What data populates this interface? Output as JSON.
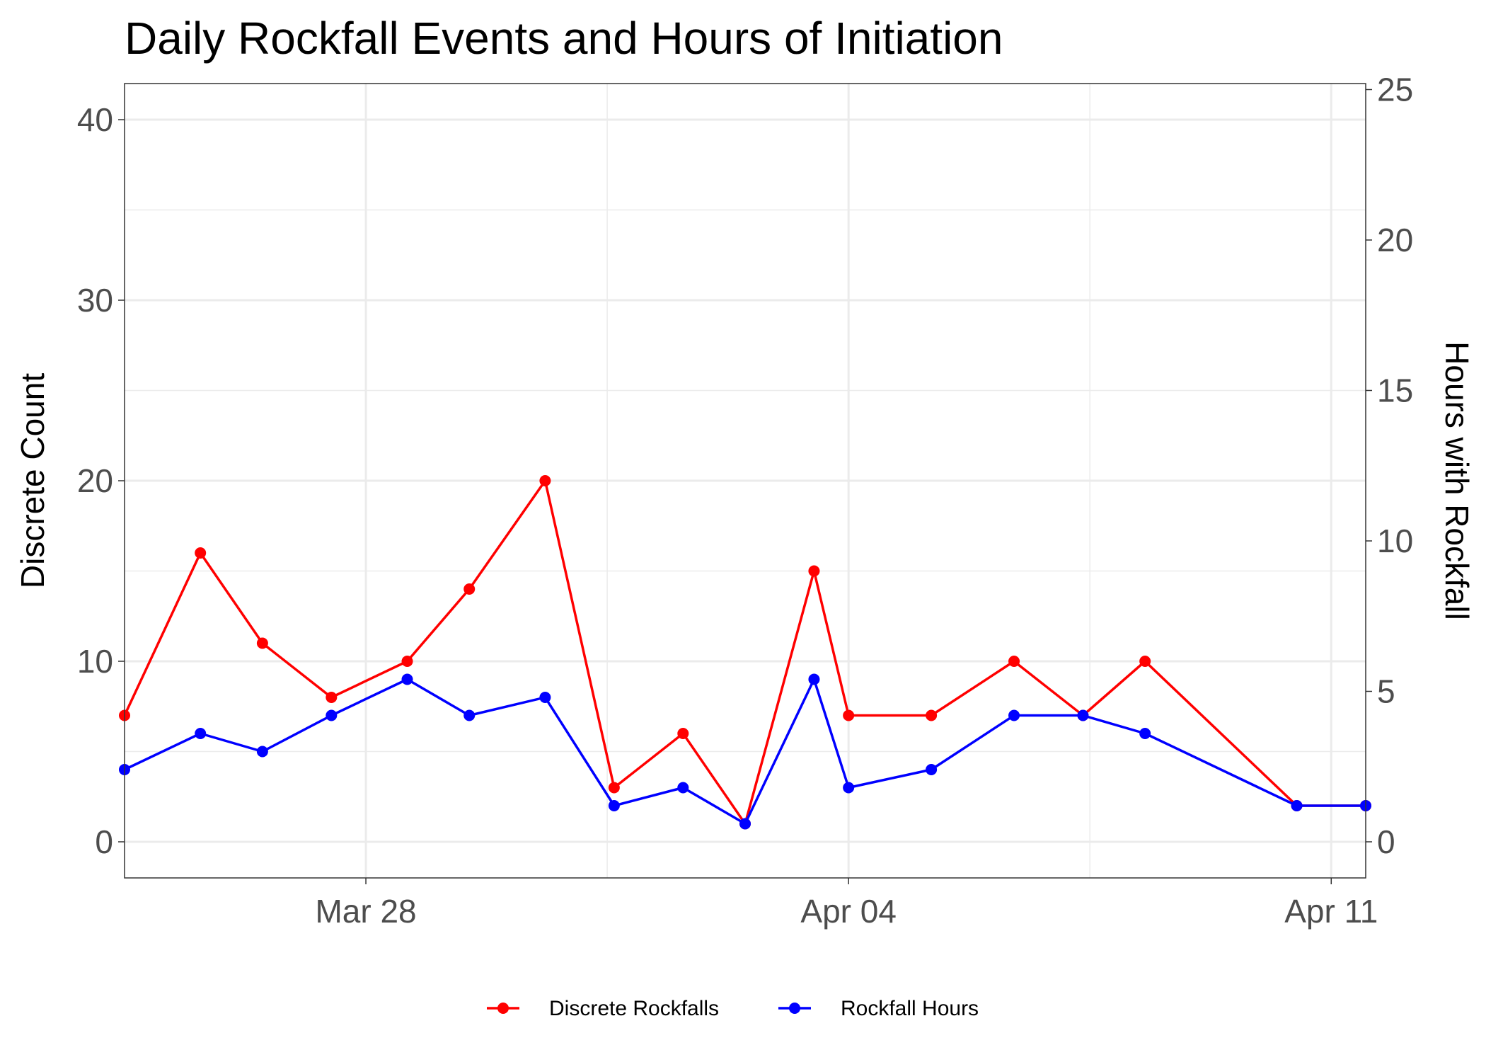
{
  "chart_data": {
    "type": "line",
    "title": "Daily Rockfall Events and Hours of Initiation",
    "xlabel": "",
    "ylabel": "Discrete Count",
    "y2label": "Hours with Rockfall",
    "x_tick_labels": [
      "Mar 28",
      "Apr 04",
      "Apr 11"
    ],
    "x_ticks": [
      "2023-03-28",
      "2023-04-04",
      "2023-04-11"
    ],
    "xlim": [
      "2023-03-24.5",
      "2023-04-11.5"
    ],
    "ylim": [
      -2,
      42
    ],
    "y_ticks": [
      0,
      10,
      20,
      30,
      40
    ],
    "y2lim": [
      -1.2,
      25.2
    ],
    "y2_ticks": [
      0,
      5,
      10,
      15,
      20,
      25
    ],
    "grid": true,
    "legend_position": "bottom",
    "series": [
      {
        "name": "Discrete Rockfalls",
        "color": "#ff0000",
        "axis": "left",
        "x": [
          "2023-03-24.5",
          "2023-03-25.6",
          "2023-03-26.5",
          "2023-03-27.5",
          "2023-03-28.6",
          "2023-03-29.5",
          "2023-03-30.6",
          "2023-03-31.6",
          "2023-04-01.6",
          "2023-04-02.5",
          "2023-04-03.5",
          "2023-04-04.0",
          "2023-04-05.2",
          "2023-04-06.4",
          "2023-04-07.4",
          "2023-04-08.3",
          "2023-04-10.5",
          "2023-04-11.5"
        ],
        "values": [
          7,
          16,
          11,
          8,
          10,
          14,
          20,
          3,
          6,
          1,
          15,
          7,
          7,
          10,
          7,
          10,
          2,
          2
        ]
      },
      {
        "name": "Rockfall Hours",
        "color": "#0000ff",
        "axis": "right",
        "x": [
          "2023-03-24.5",
          "2023-03-25.6",
          "2023-03-26.5",
          "2023-03-27.5",
          "2023-03-28.6",
          "2023-03-29.5",
          "2023-03-30.6",
          "2023-03-31.6",
          "2023-04-01.6",
          "2023-04-02.5",
          "2023-04-03.5",
          "2023-04-04.0",
          "2023-04-05.2",
          "2023-04-06.4",
          "2023-04-07.4",
          "2023-04-08.3",
          "2023-04-10.5",
          "2023-04-11.5"
        ],
        "values": [
          2.4,
          3.6,
          3,
          4.2,
          5.4,
          4.2,
          4.8,
          1.2,
          1.8,
          0.6,
          5.4,
          1.8,
          2.4,
          4.2,
          4.2,
          3.6,
          1.2,
          1.2
        ]
      }
    ]
  }
}
